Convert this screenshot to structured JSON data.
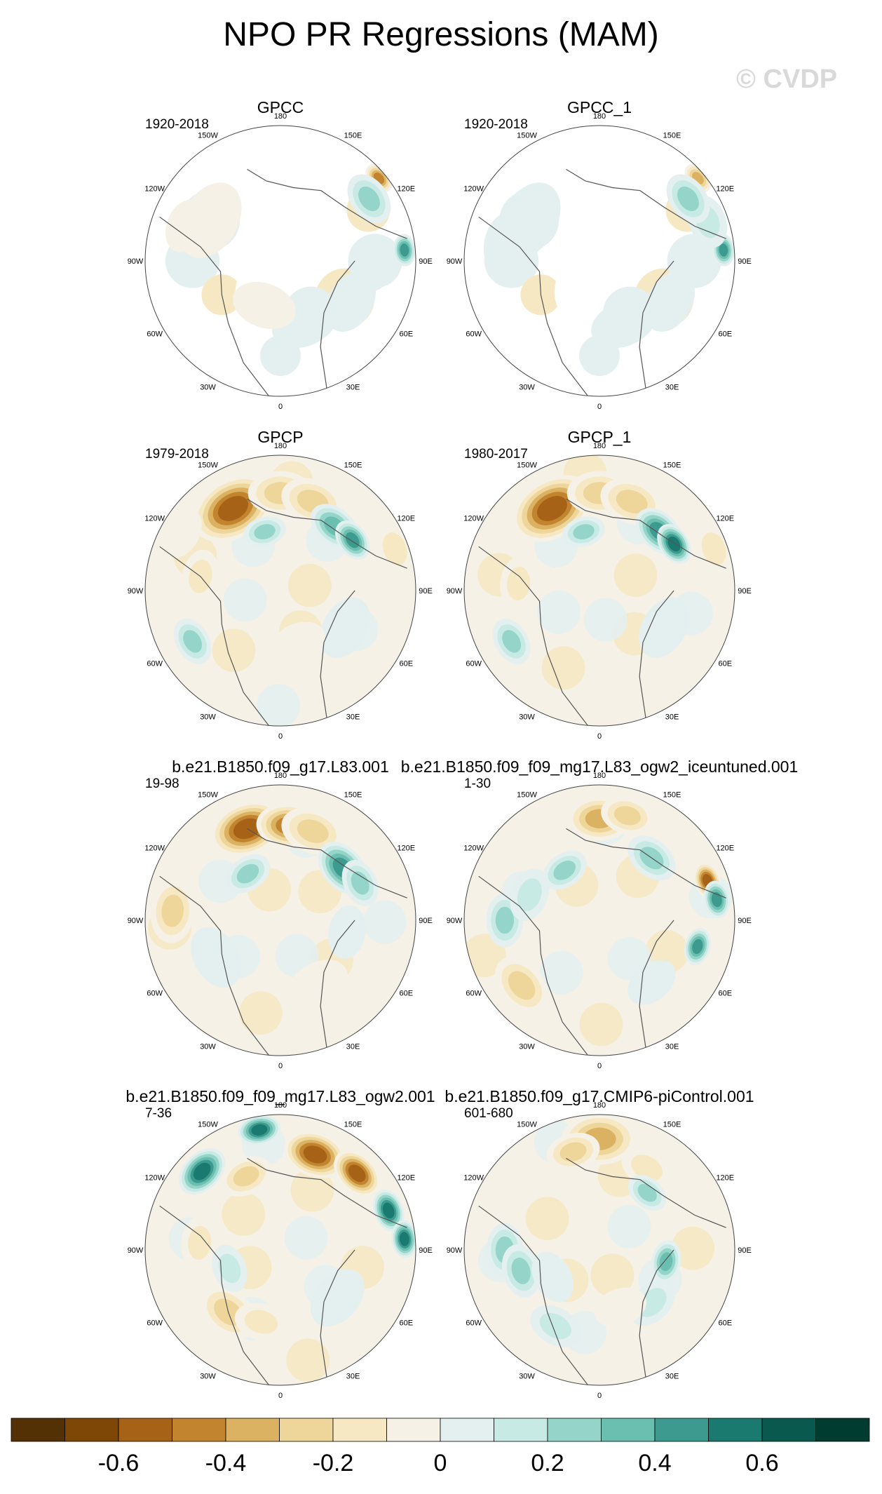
{
  "title": "NPO PR Regressions (MAM)",
  "watermark": "© CVDP",
  "longitude_labels": [
    "180",
    "150E",
    "120E",
    "90E",
    "60E",
    "30E",
    "0",
    "30W",
    "60W",
    "90W",
    "120W",
    "150W"
  ],
  "panels": [
    {
      "dataset": "GPCC",
      "period": "1920-2018",
      "ocean_masked": true,
      "pattern": "gpcc"
    },
    {
      "dataset": "GPCC_1",
      "period": "1920-2018",
      "ocean_masked": true,
      "pattern": "gpcc1"
    },
    {
      "dataset": "GPCP",
      "period": "1979-2018",
      "ocean_masked": false,
      "pattern": "gpcp"
    },
    {
      "dataset": "GPCP_1",
      "period": "1980-2017",
      "ocean_masked": false,
      "pattern": "gpcp1"
    },
    {
      "dataset": "b.e21.B1850.f09_g17.L83.001",
      "period": "19-98",
      "ocean_masked": false,
      "pattern": "m1"
    },
    {
      "dataset": "b.e21.B1850.f09_f09_mg17.L83_ogw2_iceuntuned.001",
      "period": "1-30",
      "ocean_masked": false,
      "pattern": "m2"
    },
    {
      "dataset": "b.e21.B1850.f09_f09_mg17.L83_ogw2.001",
      "period": "7-36",
      "ocean_masked": false,
      "pattern": "m3"
    },
    {
      "dataset": "b.e21.B1850.f09_g17.CMIP6-piControl.001",
      "period": "601-680",
      "ocean_masked": false,
      "pattern": "m4"
    }
  ],
  "colorbar": {
    "colors": [
      "#543005",
      "#7f4706",
      "#a66216",
      "#c2842f",
      "#dbb162",
      "#eed59a",
      "#f6e8c3",
      "#f5f1e6",
      "#e4f0ef",
      "#c7eae5",
      "#95d5c9",
      "#6bbfb1",
      "#3d9a8f",
      "#1b7a6f",
      "#09594e",
      "#003c30"
    ],
    "tick_labels": [
      "-0.6",
      "-0.4",
      "-0.2",
      "0",
      "0.2",
      "0.4",
      "0.6"
    ]
  }
}
